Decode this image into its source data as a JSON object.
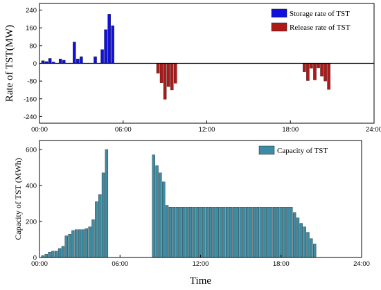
{
  "chart_data": [
    {
      "type": "bar",
      "ylabel": "Rate of TST(MW)",
      "xlabel": "",
      "ylim": [
        -270,
        270
      ],
      "xlim_hours": [
        0,
        24
      ],
      "yticks": [
        240,
        160,
        80,
        0,
        -80,
        -160,
        -240
      ],
      "yticklabels": [
        "240",
        "160",
        "80",
        "0",
        "-80",
        "-160",
        "-240"
      ],
      "xticks": [
        0,
        6,
        12,
        18,
        24
      ],
      "xticklabels": [
        "00:00",
        "06:00",
        "12:00",
        "18:00",
        "24:00"
      ],
      "legend_position": "top-right",
      "series": [
        {
          "name": "Storage rate of TST",
          "color": "#1010e0",
          "x_hours": [
            0.25,
            0.5,
            0.75,
            1.0,
            1.25,
            1.5,
            1.75,
            2.0,
            2.25,
            2.5,
            2.75,
            3.0,
            3.25,
            3.5,
            3.75,
            4.0,
            4.25,
            4.5,
            4.75,
            5.0,
            5.25
          ],
          "values": [
            12,
            8,
            22,
            6,
            0,
            20,
            14,
            0,
            0,
            96,
            20,
            30,
            0,
            0,
            0,
            30,
            0,
            62,
            152,
            222,
            170
          ]
        },
        {
          "name": "Release rate of TST",
          "color": "#b01818",
          "x_hours": [
            8.5,
            8.75,
            9.0,
            9.25,
            9.5,
            9.75,
            19.0,
            19.25,
            19.5,
            19.75,
            20.0,
            20.25,
            20.5,
            20.75
          ],
          "values": [
            -45,
            -88,
            -162,
            -105,
            -120,
            -90,
            -38,
            -78,
            -22,
            -75,
            -20,
            -58,
            -80,
            -118
          ]
        }
      ]
    },
    {
      "type": "bar",
      "ylabel": "Capacity of TST (MWh)",
      "xlabel": "Time",
      "ylim": [
        0,
        650
      ],
      "xlim_hours": [
        0,
        24
      ],
      "yticks": [
        0,
        200,
        400,
        600
      ],
      "yticklabels": [
        "0",
        "200",
        "400",
        "600"
      ],
      "xticks": [
        0,
        6,
        12,
        18,
        24
      ],
      "xticklabels": [
        "00:00",
        "06:00",
        "12:00",
        "18:00",
        "24:00"
      ],
      "legend_position": "top-right",
      "series": [
        {
          "name": "Capacity of TST",
          "color": "#3c8ca4",
          "x_hours": [
            0.25,
            0.5,
            0.75,
            1.0,
            1.25,
            1.5,
            1.75,
            2.0,
            2.25,
            2.5,
            2.75,
            3.0,
            3.25,
            3.5,
            3.75,
            4.0,
            4.25,
            4.5,
            4.75,
            5.0,
            5.25,
            8.5,
            8.75,
            9.0,
            9.25,
            9.5,
            9.75,
            10.0,
            10.25,
            10.5,
            10.75,
            11.0,
            11.25,
            11.5,
            11.75,
            12.0,
            12.25,
            12.5,
            12.75,
            13.0,
            13.25,
            13.5,
            13.75,
            14.0,
            14.25,
            14.5,
            14.75,
            15.0,
            15.25,
            15.5,
            15.75,
            16.0,
            16.25,
            16.5,
            16.75,
            17.0,
            17.25,
            17.5,
            17.75,
            18.0,
            18.25,
            18.5,
            18.75,
            19.0,
            19.25,
            19.5,
            19.75,
            20.0,
            20.25,
            20.5
          ],
          "values": [
            10,
            18,
            30,
            35,
            35,
            50,
            62,
            120,
            130,
            150,
            155,
            155,
            155,
            160,
            170,
            210,
            310,
            350,
            470,
            600,
            0,
            570,
            510,
            470,
            420,
            290,
            280,
            280,
            280,
            280,
            280,
            280,
            280,
            280,
            280,
            280,
            280,
            280,
            280,
            280,
            280,
            280,
            280,
            280,
            280,
            280,
            280,
            280,
            280,
            280,
            280,
            280,
            280,
            280,
            280,
            280,
            280,
            280,
            280,
            280,
            280,
            280,
            280,
            250,
            220,
            190,
            170,
            140,
            105,
            75
          ]
        }
      ]
    }
  ]
}
